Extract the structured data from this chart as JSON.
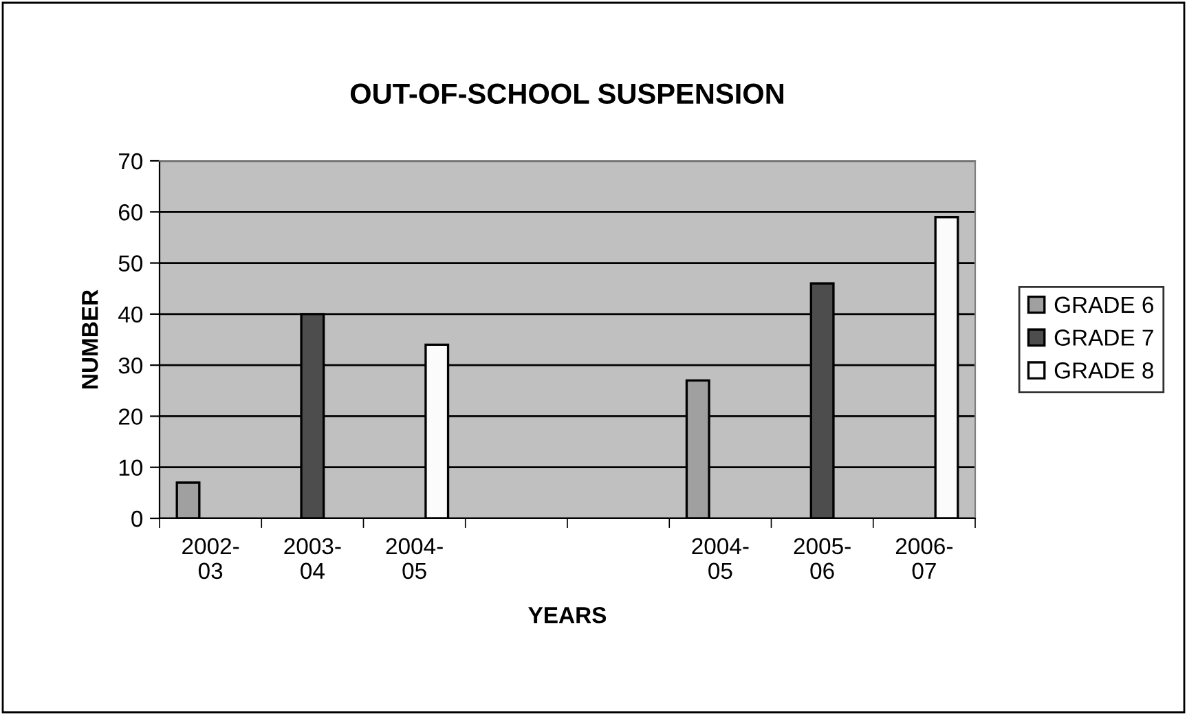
{
  "chart_data": {
    "type": "bar",
    "title": "OUT-OF-SCHOOL SUSPENSION",
    "xlabel": "YEARS",
    "ylabel": "NUMBER",
    "categories": [
      "2002-\n03",
      "2003-\n04",
      "2004-\n05",
      null,
      null,
      "2004-\n05",
      "2005-\n06",
      "2006-\n07"
    ],
    "series": [
      {
        "name": "GRADE 6",
        "color": "#a0a0a0",
        "values": [
          7,
          null,
          null,
          null,
          null,
          27,
          null,
          null
        ]
      },
      {
        "name": "GRADE 7",
        "color": "#4d4d4d",
        "values": [
          null,
          40,
          null,
          null,
          null,
          null,
          46,
          null
        ]
      },
      {
        "name": "GRADE 8",
        "color": "#fbfbfb",
        "values": [
          null,
          null,
          34,
          null,
          null,
          null,
          null,
          59
        ]
      }
    ],
    "ylim": [
      0,
      70
    ],
    "yticks": [
      0,
      10,
      20,
      30,
      40,
      50,
      60,
      70
    ],
    "grid": "y",
    "legend": "right"
  }
}
